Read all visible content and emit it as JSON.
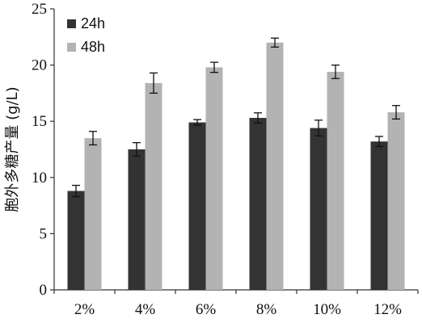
{
  "chart_data": {
    "type": "bar",
    "title": "",
    "xlabel": "",
    "ylabel": "胞外多糖产量 (g/L)",
    "categories": [
      "2%",
      "4%",
      "6%",
      "8%",
      "10%",
      "12%"
    ],
    "series": [
      {
        "name": "24h",
        "color": "#333333",
        "values": [
          8.8,
          12.5,
          14.9,
          15.3,
          14.4,
          13.2
        ],
        "errors": [
          0.5,
          0.6,
          0.25,
          0.45,
          0.7,
          0.45
        ]
      },
      {
        "name": "48h",
        "color": "#b3b3b3",
        "values": [
          13.5,
          18.4,
          19.8,
          22.0,
          19.4,
          15.8
        ],
        "errors": [
          0.6,
          0.9,
          0.45,
          0.4,
          0.6,
          0.6
        ]
      }
    ],
    "ylim": [
      0,
      25
    ],
    "yticks": [
      0,
      5,
      10,
      15,
      20,
      25
    ],
    "grid": false,
    "legend_position": "top-left"
  }
}
